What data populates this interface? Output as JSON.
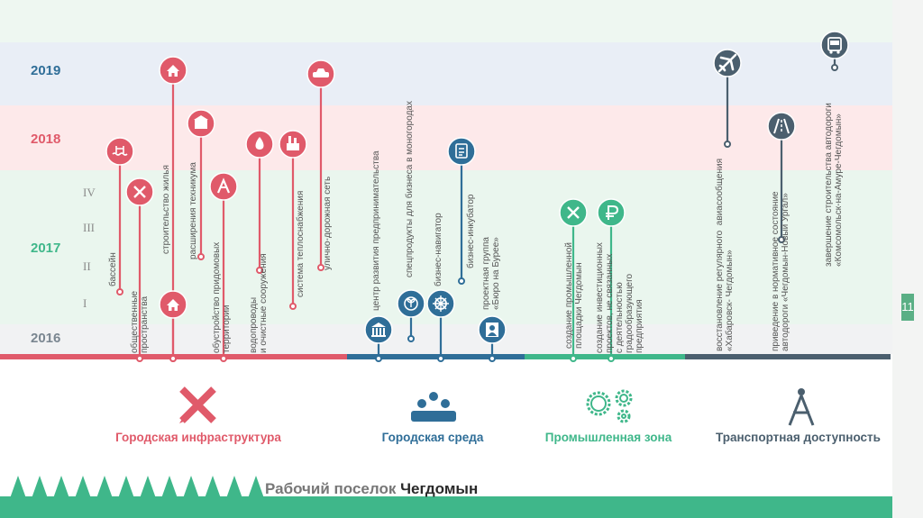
{
  "years": [
    {
      "label": "2019",
      "color": "#2f6e98"
    },
    {
      "label": "2018",
      "color": "#e05a6a"
    },
    {
      "label": "2017",
      "color": "#3fb78a"
    },
    {
      "label": "2016",
      "color": "#7a8690"
    }
  ],
  "quarters": [
    "IV",
    "III",
    "II",
    "I"
  ],
  "categories": [
    {
      "label": "Городская инфраструктура",
      "color": "#e05a6a"
    },
    {
      "label": "Городская среда",
      "color": "#2f6e98"
    },
    {
      "label": "Промышленная зона",
      "color": "#3fb78a"
    },
    {
      "label": "Транспортная доступность",
      "color": "#4b5f6e"
    }
  ],
  "milestones": [
    {
      "text": "бассейн",
      "icon": "pool-icon"
    },
    {
      "text": "общественные\nпространства",
      "icon": "tools-icon"
    },
    {
      "text": "строительство жилья",
      "icon": "house-icon"
    },
    {
      "text": "расширения техникума",
      "icon": "school-icon"
    },
    {
      "text": "обустройство придомовых\nтерритории",
      "icon": "playground-icon"
    },
    {
      "text": "водопроводы\nи очистные сооружения",
      "icon": "water-drop-icon"
    },
    {
      "text": "система теплоснабжения",
      "icon": "heat-plant-icon"
    },
    {
      "text": "улично-дорожная сеть",
      "icon": "car-icon"
    },
    {
      "text": "центр развития предпринимательства",
      "icon": "bank-icon"
    },
    {
      "text": "спецпродукты для бизнеса в моногородах",
      "icon": "sprout-icon"
    },
    {
      "text": "бизнес-навигатор",
      "icon": "helm-icon"
    },
    {
      "text": "бизнес-инкубатор",
      "icon": "checklist-icon"
    },
    {
      "text": "проектная группа\n«Бюро на Бурее»",
      "icon": "person-icon"
    },
    {
      "text": "создание промышленной\nплощадки Чегдомын",
      "icon": "tools-icon"
    },
    {
      "text": "создание инвестиционных\nпроектов, не связанных\nс деятельностью\nградообразующего\nпредприятия",
      "icon": "ruble-icon"
    },
    {
      "text": "восстановление регулярного  авиасообщения\n«Хабаровск- Чегдомын»",
      "icon": "airplane-icon"
    },
    {
      "text": "приведение в нормативное состояние\nавтодороги «Чегдомын-Новый Ургал»",
      "icon": "road-icon"
    },
    {
      "text": "завершение строительства автодороги\n«Комсомольск-на-Амуре-Чегдомын»",
      "icon": "bus-icon"
    }
  ],
  "page_number": "11",
  "footer": {
    "prefix": "Рабочий поселок ",
    "name": "Чегдомын"
  }
}
